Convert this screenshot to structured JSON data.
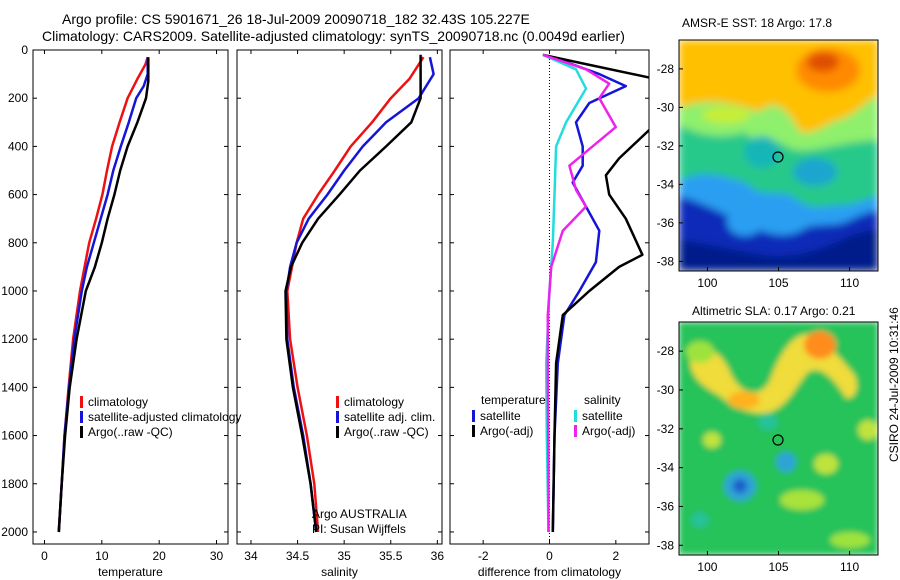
{
  "header": {
    "line1": "Argo profile: CS 5901671_26 18-Jul-2009 20090718_182 32.43S 105.227E",
    "line2": "Climatology: CARS2009. Satellite-adjusted climatology: synTS_20090718.nc (0.0049d earlier)"
  },
  "side_label": "CSIRO 24-Jul-2009 10:31:46",
  "credit": {
    "line1": "Argo AUSTRALIA",
    "line2": "PI: Susan Wijffels"
  },
  "colors": {
    "red": "#ee1111",
    "blue": "#1515d8",
    "black": "#000000",
    "cyan": "#22dddd",
    "magenta": "#ee22ee"
  },
  "chart_data": [
    {
      "type": "line",
      "xlabel": "temperature",
      "ylabel": "",
      "xlim": [
        -2,
        32
      ],
      "ylim": [
        2050,
        0
      ],
      "xticks": [
        0,
        10,
        20,
        30
      ],
      "yticks": [
        0,
        200,
        400,
        600,
        800,
        1000,
        1200,
        1400,
        1600,
        1800,
        2000
      ],
      "legend": [
        "climatology",
        "satellite-adjusted climatology",
        "Argo(..raw -QC)"
      ],
      "series": [
        {
          "name": "climatology",
          "color": "red",
          "points": [
            [
              18,
              30
            ],
            [
              17.6,
              60
            ],
            [
              16.2,
              120
            ],
            [
              14.5,
              200
            ],
            [
              13.1,
              300
            ],
            [
              11.8,
              400
            ],
            [
              10.9,
              500
            ],
            [
              10.1,
              600
            ],
            [
              9,
              700
            ],
            [
              7.8,
              800
            ],
            [
              7,
              900
            ],
            [
              6.2,
              1000
            ],
            [
              5,
              1200
            ],
            [
              4.2,
              1400
            ],
            [
              3.5,
              1600
            ],
            [
              3,
              1800
            ],
            [
              2.5,
              2000
            ]
          ]
        },
        {
          "name": "satellite-adjusted climatology",
          "color": "blue",
          "points": [
            [
              18,
              30
            ],
            [
              18,
              100
            ],
            [
              17.3,
              150
            ],
            [
              16,
              200
            ],
            [
              14.7,
              300
            ],
            [
              13.3,
              400
            ],
            [
              12,
              500
            ],
            [
              11,
              600
            ],
            [
              9.8,
              700
            ],
            [
              8.6,
              800
            ],
            [
              7.4,
              900
            ],
            [
              6.5,
              1000
            ],
            [
              5.2,
              1200
            ],
            [
              4.3,
              1400
            ],
            [
              3.5,
              1600
            ],
            [
              3,
              1800
            ],
            [
              2.5,
              2000
            ]
          ]
        },
        {
          "name": "Argo(..raw -QC)",
          "color": "black",
          "points": [
            [
              18.1,
              30
            ],
            [
              18.1,
              130
            ],
            [
              17.7,
              200
            ],
            [
              16.2,
              300
            ],
            [
              14.5,
              400
            ],
            [
              13.2,
              500
            ],
            [
              12.2,
              600
            ],
            [
              11,
              700
            ],
            [
              10,
              800
            ],
            [
              8.8,
              900
            ],
            [
              7.2,
              1000
            ],
            [
              5.6,
              1200
            ],
            [
              4.4,
              1400
            ],
            [
              3.6,
              1600
            ],
            [
              3,
              1800
            ],
            [
              2.5,
              2000
            ]
          ]
        }
      ]
    },
    {
      "type": "line",
      "xlabel": "salinity",
      "ylabel": "",
      "xlim": [
        33.85,
        36.05
      ],
      "ylim": [
        2050,
        0
      ],
      "xticks": [
        34,
        34.5,
        35,
        35.5,
        36
      ],
      "xticklabels": [
        "34",
        "34.5",
        "35",
        "35.5",
        "36"
      ],
      "yticks": [
        0,
        200,
        400,
        600,
        800,
        1000,
        1200,
        1400,
        1600,
        1800,
        2000
      ],
      "legend": [
        "climatology",
        "satellite adj. clim.",
        "Argo(..raw -QC)"
      ],
      "series": [
        {
          "name": "climatology",
          "color": "red",
          "points": [
            [
              35.85,
              30
            ],
            [
              35.7,
              120
            ],
            [
              35.5,
              200
            ],
            [
              35.3,
              300
            ],
            [
              35.07,
              400
            ],
            [
              34.9,
              500
            ],
            [
              34.72,
              600
            ],
            [
              34.56,
              700
            ],
            [
              34.49,
              800
            ],
            [
              34.44,
              900
            ],
            [
              34.39,
              1000
            ],
            [
              34.42,
              1200
            ],
            [
              34.5,
              1400
            ],
            [
              34.6,
              1600
            ],
            [
              34.68,
              1800
            ],
            [
              34.72,
              2000
            ]
          ]
        },
        {
          "name": "satellite adj. clim.",
          "color": "blue",
          "points": [
            [
              35.92,
              30
            ],
            [
              35.96,
              100
            ],
            [
              35.8,
              200
            ],
            [
              35.45,
              300
            ],
            [
              35.2,
              400
            ],
            [
              35,
              500
            ],
            [
              34.82,
              600
            ],
            [
              34.62,
              700
            ],
            [
              34.49,
              800
            ],
            [
              34.42,
              900
            ],
            [
              34.38,
              1000
            ],
            [
              34.39,
              1200
            ],
            [
              34.46,
              1400
            ],
            [
              34.56,
              1600
            ],
            [
              34.64,
              1800
            ],
            [
              34.7,
              2000
            ]
          ]
        },
        {
          "name": "Argo(..raw -QC)",
          "color": "black",
          "points": [
            [
              35.82,
              20
            ],
            [
              35.82,
              200
            ],
            [
              35.72,
              300
            ],
            [
              35.45,
              400
            ],
            [
              35.17,
              500
            ],
            [
              34.95,
              600
            ],
            [
              34.72,
              700
            ],
            [
              34.55,
              800
            ],
            [
              34.43,
              900
            ],
            [
              34.37,
              1000
            ],
            [
              34.38,
              1200
            ],
            [
              34.45,
              1400
            ],
            [
              34.55,
              1600
            ],
            [
              34.64,
              1800
            ],
            [
              34.7,
              2000
            ]
          ]
        }
      ]
    },
    {
      "type": "line",
      "xlabel": "difference from climatology",
      "ylabel": "",
      "xlim": [
        -3,
        3
      ],
      "ylim": [
        2050,
        0
      ],
      "xticks": [
        -2,
        0,
        2
      ],
      "xticklabels": [
        "-2",
        "0",
        "2"
      ],
      "yticks": [
        0,
        200,
        400,
        600,
        800,
        1000,
        1200,
        1400,
        1600,
        1800,
        2000
      ],
      "reference_line": {
        "x": 0,
        "style": "dotted"
      },
      "legend_titles": [
        "temperature",
        "salinity"
      ],
      "legend": [
        "satellite",
        "Argo(-adj)",
        "satellite",
        "Argo(-adj)"
      ],
      "series": [
        {
          "name": "satellite",
          "group": "temperature",
          "color": "blue",
          "points": [
            [
              -0.2,
              20
            ],
            [
              0.5,
              50
            ],
            [
              1.5,
              100
            ],
            [
              2.3,
              150
            ],
            [
              1.2,
              220
            ],
            [
              0.8,
              300
            ],
            [
              1.0,
              400
            ],
            [
              1.0,
              480
            ],
            [
              0.7,
              550
            ],
            [
              1.1,
              650
            ],
            [
              1.5,
              750
            ],
            [
              1.4,
              880
            ],
            [
              0.9,
              1000
            ],
            [
              0.45,
              1100
            ],
            [
              0.25,
              1300
            ],
            [
              0.15,
              1600
            ],
            [
              0.1,
              2000
            ]
          ]
        },
        {
          "name": "Argo(-adj)",
          "group": "temperature",
          "color": "black",
          "points": [
            [
              -0.2,
              20
            ],
            [
              0.8,
              50
            ],
            [
              3.2,
              120
            ],
            [
              3.1,
              320
            ],
            [
              2.1,
              450
            ],
            [
              1.7,
              520
            ],
            [
              1.8,
              600
            ],
            [
              2.3,
              700
            ],
            [
              2.8,
              850
            ],
            [
              2.1,
              900
            ],
            [
              1.2,
              1000
            ],
            [
              0.4,
              1100
            ],
            [
              0.2,
              1300
            ],
            [
              0.15,
              1600
            ],
            [
              0.1,
              2000
            ]
          ]
        },
        {
          "name": "satellite",
          "group": "salinity",
          "color": "cyan",
          "points": [
            [
              -0.2,
              20
            ],
            [
              0.8,
              80
            ],
            [
              1.1,
              160
            ],
            [
              0.5,
              300
            ],
            [
              0.2,
              400
            ],
            [
              0.15,
              600
            ],
            [
              0.1,
              800
            ],
            [
              0,
              1000
            ],
            [
              -0.1,
              1300
            ],
            [
              -0.08,
              1600
            ],
            [
              -0.03,
              2000
            ]
          ]
        },
        {
          "name": "Argo(-adj)",
          "group": "salinity",
          "color": "magenta",
          "points": [
            [
              -0.2,
              20
            ],
            [
              1.1,
              80
            ],
            [
              1.8,
              140
            ],
            [
              1.5,
              200
            ],
            [
              2.0,
              320
            ],
            [
              0.6,
              480
            ],
            [
              0.8,
              580
            ],
            [
              1.1,
              650
            ],
            [
              0.4,
              750
            ],
            [
              0.05,
              900
            ],
            [
              -0.05,
              1100
            ],
            [
              -0.05,
              1400
            ],
            [
              -0.03,
              1700
            ],
            [
              -0.03,
              2000
            ]
          ]
        }
      ]
    },
    {
      "type": "heatmap",
      "title": "AMSR-E SST: 18 Argo: 17.8",
      "xlim": [
        98,
        112
      ],
      "ylim": [
        -38.5,
        -26.5
      ],
      "xticks": [
        100,
        105,
        110
      ],
      "yticks": [
        -28,
        -30,
        -32,
        -34,
        -36,
        -38
      ],
      "marker": {
        "lon": 105.227,
        "lat": -32.43
      }
    },
    {
      "type": "heatmap",
      "title": "Altimetric SLA: 0.17 Argo: 0.21",
      "xlim": [
        98,
        112
      ],
      "ylim": [
        -38.5,
        -26.5
      ],
      "xticks": [
        100,
        105,
        110
      ],
      "yticks": [
        -28,
        -30,
        -32,
        -34,
        -36,
        -38
      ],
      "marker": {
        "lon": 105.227,
        "lat": -32.43
      }
    }
  ]
}
